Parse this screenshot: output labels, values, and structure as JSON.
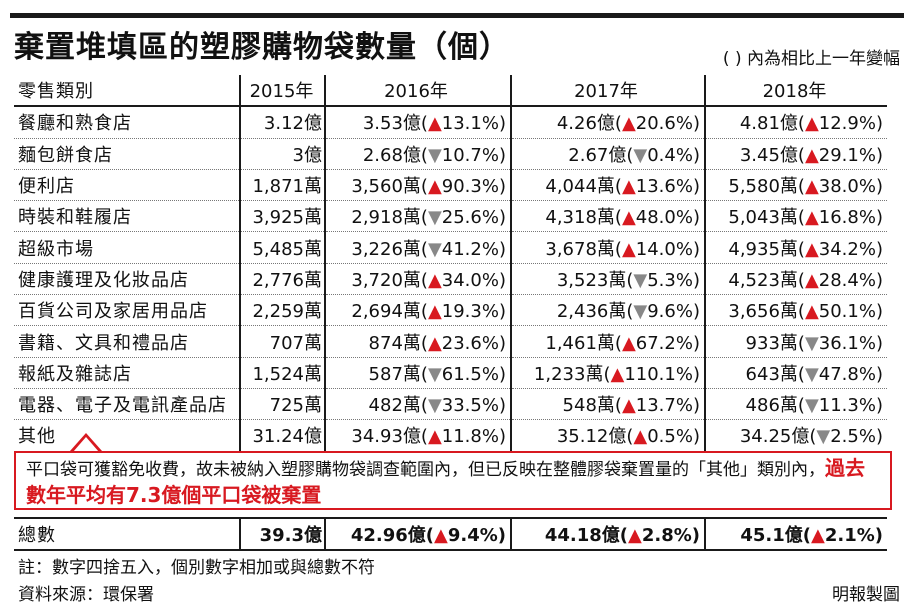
{
  "title": "棄置堆填區的塑膠購物袋數量（個）",
  "note": "( ) 內為相比上一年變幅",
  "headers": [
    "零售類別",
    "2015年",
    "2016年",
    "2017年",
    "2018年"
  ],
  "rows": [
    {
      "cat": "餐廳和熟食店",
      "y2015": "3.12億",
      "y2016": "3.53億",
      "c2016": "13.1%",
      "d2016": "up",
      "y2017": "4.26億",
      "c2017": "20.6%",
      "d2017": "up",
      "y2018": "4.81億",
      "c2018": "12.9%",
      "d2018": "up"
    },
    {
      "cat": "麵包餅食店",
      "y2015": "3億",
      "y2016": "2.68億",
      "c2016": "10.7%",
      "d2016": "down",
      "y2017": "2.67億",
      "c2017": "0.4%",
      "d2017": "down",
      "y2018": "3.45億",
      "c2018": "29.1%",
      "d2018": "up"
    },
    {
      "cat": "便利店",
      "y2015": "1,871萬",
      "y2016": "3,560萬",
      "c2016": "90.3%",
      "d2016": "up",
      "y2017": "4,044萬",
      "c2017": "13.6%",
      "d2017": "up",
      "y2018": "5,580萬",
      "c2018": "38.0%",
      "d2018": "up"
    },
    {
      "cat": "時裝和鞋履店",
      "y2015": "3,925萬",
      "y2016": "2,918萬",
      "c2016": "25.6%",
      "d2016": "down",
      "y2017": "4,318萬",
      "c2017": "48.0%",
      "d2017": "up",
      "y2018": "5,043萬",
      "c2018": "16.8%",
      "d2018": "up"
    },
    {
      "cat": "超級市場",
      "y2015": "5,485萬",
      "y2016": "3,226萬",
      "c2016": "41.2%",
      "d2016": "down",
      "y2017": "3,678萬",
      "c2017": "14.0%",
      "d2017": "up",
      "y2018": "4,935萬",
      "c2018": "34.2%",
      "d2018": "up"
    },
    {
      "cat": "健康護理及化妝品店",
      "y2015": "2,776萬",
      "y2016": "3,720萬",
      "c2016": "34.0%",
      "d2016": "up",
      "y2017": "3,523萬",
      "c2017": "5.3%",
      "d2017": "down",
      "y2018": "4,523萬",
      "c2018": "28.4%",
      "d2018": "up"
    },
    {
      "cat": "百貨公司及家居用品店",
      "y2015": "2,259萬",
      "y2016": "2,694萬",
      "c2016": "19.3%",
      "d2016": "up",
      "y2017": "2,436萬",
      "c2017": "9.6%",
      "d2017": "down",
      "y2018": "3,656萬",
      "c2018": "50.1%",
      "d2018": "up"
    },
    {
      "cat": "書籍、文具和禮品店",
      "y2015": "707萬",
      "y2016": "874萬",
      "c2016": "23.6%",
      "d2016": "up",
      "y2017": "1,461萬",
      "c2017": "67.2%",
      "d2017": "up",
      "y2018": "933萬",
      "c2018": "36.1%",
      "d2018": "down"
    },
    {
      "cat": "報紙及雜誌店",
      "y2015": "1,524萬",
      "y2016": "587萬",
      "c2016": "61.5%",
      "d2016": "down",
      "y2017": "1,233萬",
      "c2017": "110.1%",
      "d2017": "up",
      "y2018": "643萬",
      "c2018": "47.8%",
      "d2018": "down"
    },
    {
      "cat": "電器、電子及電訊產品店",
      "y2015": "725萬",
      "y2016": "482萬",
      "c2016": "33.5%",
      "d2016": "down",
      "y2017": "548萬",
      "c2017": "13.7%",
      "d2017": "up",
      "y2018": "486萬",
      "c2018": "11.3%",
      "d2018": "down"
    },
    {
      "cat": "其他",
      "y2015": "31.24億",
      "y2016": "34.93億",
      "c2016": "11.8%",
      "d2016": "up",
      "y2017": "35.12億",
      "c2017": "0.5%",
      "d2017": "up",
      "y2018": "34.25億",
      "c2018": "2.5%",
      "d2018": "down"
    }
  ],
  "callout": {
    "text": "平口袋可獲豁免收費，故未被納入塑膠購物袋調查範圍內，但已反映在整體膠袋棄置量的「其他」類別內，",
    "highlight": "過去數年平均有7.3億個平口袋被棄置"
  },
  "total": {
    "cat": "總數",
    "y2015": "39.3億",
    "y2016": "42.96億",
    "c2016": "9.4%",
    "d2016": "up",
    "y2017": "44.18億",
    "c2017": "2.8%",
    "d2017": "up",
    "y2018": "45.1億",
    "c2018": "2.1%",
    "d2018": "up"
  },
  "footnote": "註：數字四捨五入，個別數字相加或與總數不符",
  "source": "資料來源：環保署",
  "credit": "明報製圖",
  "colors": {
    "up": "#d81920",
    "down": "#888888",
    "rule": "#1a1a1a"
  }
}
